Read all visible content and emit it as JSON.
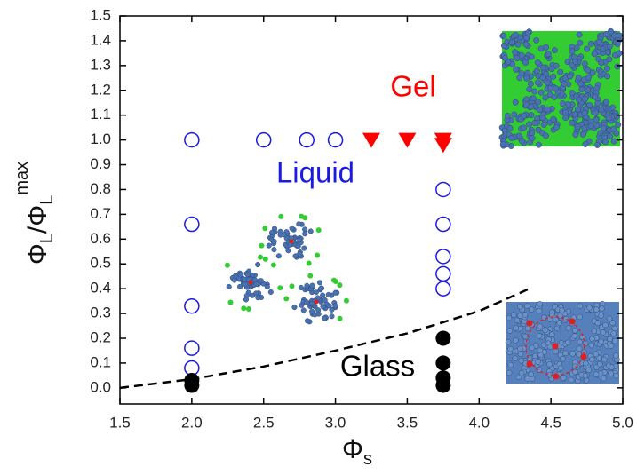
{
  "chart_data": {
    "type": "scatter",
    "xlabel_parts": [
      "Φ",
      "s"
    ],
    "ylabel_parts": [
      "Φ",
      "L",
      "/Φ",
      "L",
      "max"
    ],
    "xlim": [
      1.5,
      5.0
    ],
    "ylim": [
      -0.065,
      1.5
    ],
    "xticks": [
      1.5,
      {
        "value": 2,
        "label": "2.0"
      },
      2.5,
      {
        "value": 3,
        "label": "3.0"
      },
      3.5,
      {
        "value": 4,
        "label": "4.0"
      },
      4.5,
      {
        "value": 5,
        "label": "5.0"
      }
    ],
    "yticks": [
      {
        "value": 0,
        "label": "0.0"
      },
      0.1,
      0.2,
      0.3,
      0.4,
      0.5,
      0.6,
      0.7,
      0.8,
      0.9,
      {
        "value": 1,
        "label": "1.0"
      },
      1.1,
      1.2,
      1.3,
      1.4,
      1.5
    ],
    "series": [
      {
        "name": "Liquid",
        "color": "#1a1ae6",
        "marker": "open-circle",
        "x": [
          2.0,
          2.0,
          2.0,
          2.0,
          2.0,
          2.5,
          2.8,
          3.0,
          3.75,
          3.75,
          3.75,
          3.75,
          3.75
        ],
        "values": [
          1.0,
          0.66,
          0.33,
          0.16,
          0.08,
          1.0,
          1.0,
          1.0,
          0.8,
          0.66,
          0.53,
          0.46,
          0.4
        ]
      },
      {
        "name": "Gel",
        "color": "#ff0000",
        "marker": "down-triangle",
        "x": [
          3.25,
          3.5,
          3.75,
          3.75
        ],
        "values": [
          1.0,
          1.0,
          1.0,
          0.98
        ]
      },
      {
        "name": "Glass",
        "color": "#000000",
        "marker": "filled-circle",
        "x": [
          2.0,
          2.0,
          3.75,
          3.75,
          3.75,
          3.75
        ],
        "values": [
          0.03,
          0.01,
          0.2,
          0.1,
          0.04,
          0.01
        ]
      }
    ],
    "boundary": {
      "style": "dashed",
      "color": "#000000",
      "x": [
        1.5,
        2.0,
        2.5,
        3.0,
        3.5,
        4.0,
        4.35
      ],
      "values": [
        0.0,
        0.035,
        0.086,
        0.15,
        0.22,
        0.31,
        0.4
      ]
    }
  }
}
